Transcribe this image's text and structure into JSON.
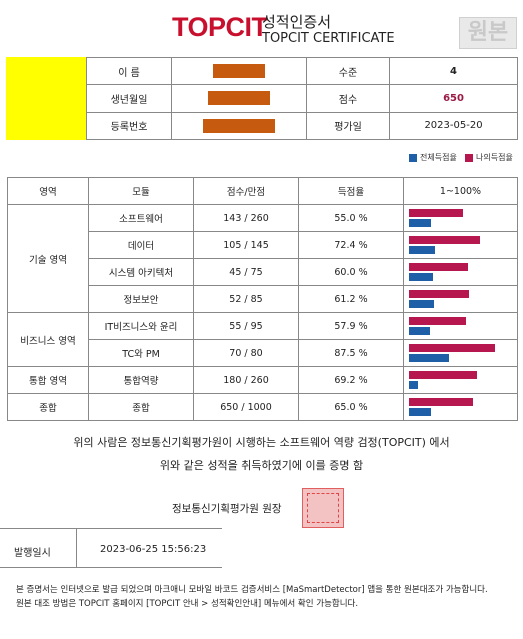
{
  "header": {
    "logo_text": "TOPCIT",
    "title_ko": "성적인증서",
    "title_en": "TOPCIT CERTIFICATE",
    "stamp_text": "원본"
  },
  "info": {
    "name_label": "이   름",
    "birth_label": "생년월일",
    "reg_label": "등록번호",
    "level_label": "수준",
    "level_value": "4",
    "score_label": "점수",
    "score_value": "650",
    "date_label": "평가일",
    "date_value": "2023-05-20"
  },
  "legend": {
    "national_label": "전체득점율",
    "mine_label": "나의득점율",
    "national_color": "#1f5fa8",
    "mine_color": "#b5174e"
  },
  "table": {
    "headers": [
      "영역",
      "모듈",
      "점수/만점",
      "득점율",
      "1~100%"
    ],
    "groups": [
      {
        "area": "기술 영역",
        "rows": [
          {
            "module": "소프트웨어",
            "score": "143 / 260",
            "rate": "55.0 %",
            "mine": 55.0,
            "national": 22
          },
          {
            "module": "데이터",
            "score": "105 / 145",
            "rate": "72.4 %",
            "mine": 72.4,
            "national": 27
          },
          {
            "module": "시스템 아키텍처",
            "score": "45 / 75",
            "rate": "60.0 %",
            "mine": 60.0,
            "national": 24
          },
          {
            "module": "정보보안",
            "score": "52 / 85",
            "rate": "61.2 %",
            "mine": 61.2,
            "national": 25
          }
        ]
      },
      {
        "area": "비즈니스 영역",
        "rows": [
          {
            "module": "IT비즈니스와 윤리",
            "score": "55 / 95",
            "rate": "57.9 %",
            "mine": 57.9,
            "national": 21
          },
          {
            "module": "TC와 PM",
            "score": "70 / 80",
            "rate": "87.5 %",
            "mine": 87.5,
            "national": 41
          }
        ]
      },
      {
        "area": "통합 영역",
        "rows": [
          {
            "module": "통합역량",
            "score": "180 / 260",
            "rate": "69.2 %",
            "mine": 69.2,
            "national": 9
          }
        ]
      },
      {
        "area": "종합",
        "rows": [
          {
            "module": "종합",
            "score": "650 / 1000",
            "rate": "65.0 %",
            "mine": 65.0,
            "national": 22
          }
        ]
      }
    ]
  },
  "statement": {
    "line1": "위의 사람은 정보통신기획평가원이 시행하는 소프트웨어 역량 검정(TOPCIT) 에서",
    "line2": "위와 같은 성적을 취득하였기에 이를 증명 함"
  },
  "issuer": "정보통신기획평가원 원장",
  "issue": {
    "label": "발행일시",
    "value": "2023-06-25 15:56:23"
  },
  "footnotes": {
    "line1": "본 증명서는 인터넷으로 발급 되었으며 마크애니 모바일 바코드 검증서비스 [MaSmartDetector] 앱을 통한 원본대조가 가능합니다.",
    "line2": "원본 대조 방법은 TOPCIT 홈페이지 [TOPCIT 안내 > 성적확인안내] 메뉴에서 확인 가능합니다."
  }
}
